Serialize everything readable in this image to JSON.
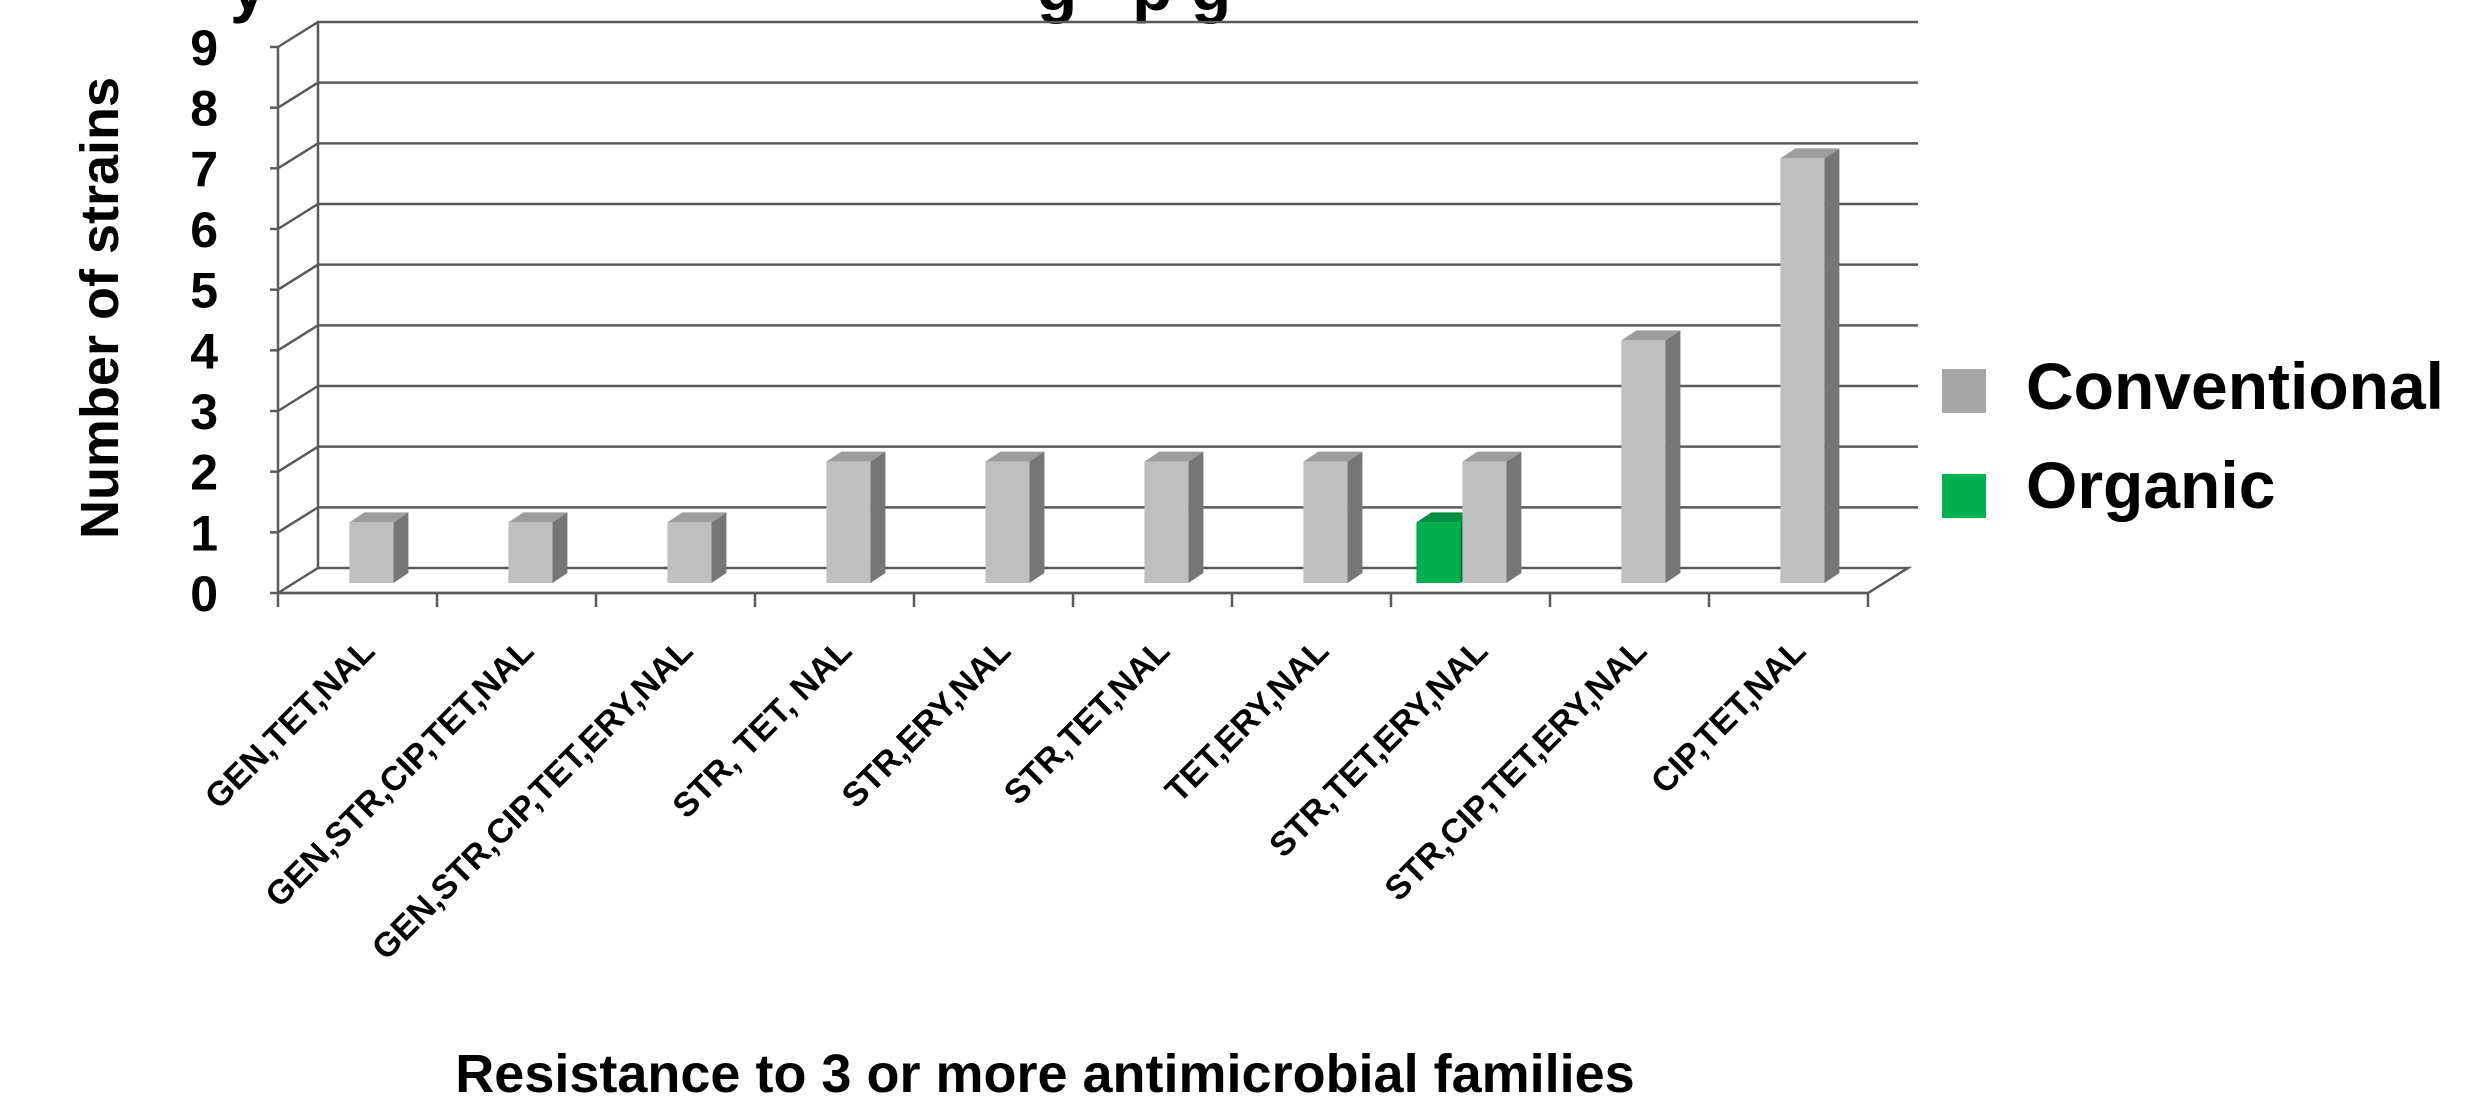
{
  "chart_data": {
    "type": "bar",
    "title": "",
    "title_partial_visible": "y                                          g   p g",
    "xlabel": "Resistance to 3 or more antimicrobial families",
    "ylabel": "Number of strains",
    "ylim": [
      0,
      9
    ],
    "yticks": [
      "0",
      "1",
      "2",
      "3",
      "4",
      "5",
      "6",
      "7",
      "8",
      "9"
    ],
    "grid": true,
    "legend_position": "right",
    "categories": [
      "GEN,TET,NAL",
      "GEN,STR,CIP,TET,NAL",
      "GEN,STR,CIP,TET,ERY,NAL",
      "STR, TET, NAL",
      "STR,ERY,NAL",
      "STR,TET,NAL",
      "TET,ERY,NAL",
      "STR,TET,ERY,NAL",
      "STR,CIP,TET,ERY,NAL",
      "CIP,TET,NAL"
    ],
    "series": [
      {
        "name": "Organic",
        "color": "#00b050",
        "values": [
          null,
          null,
          null,
          null,
          null,
          null,
          null,
          1,
          null,
          null
        ]
      },
      {
        "name": "Conventional",
        "color": "#bfbfbf",
        "values": [
          1,
          1,
          1,
          2,
          2,
          2,
          2,
          2,
          4,
          7
        ]
      }
    ],
    "legend": [
      {
        "name": "Conventional",
        "color": "#a6a6a6"
      },
      {
        "name": "Organic",
        "color": "#00b050"
      }
    ]
  }
}
